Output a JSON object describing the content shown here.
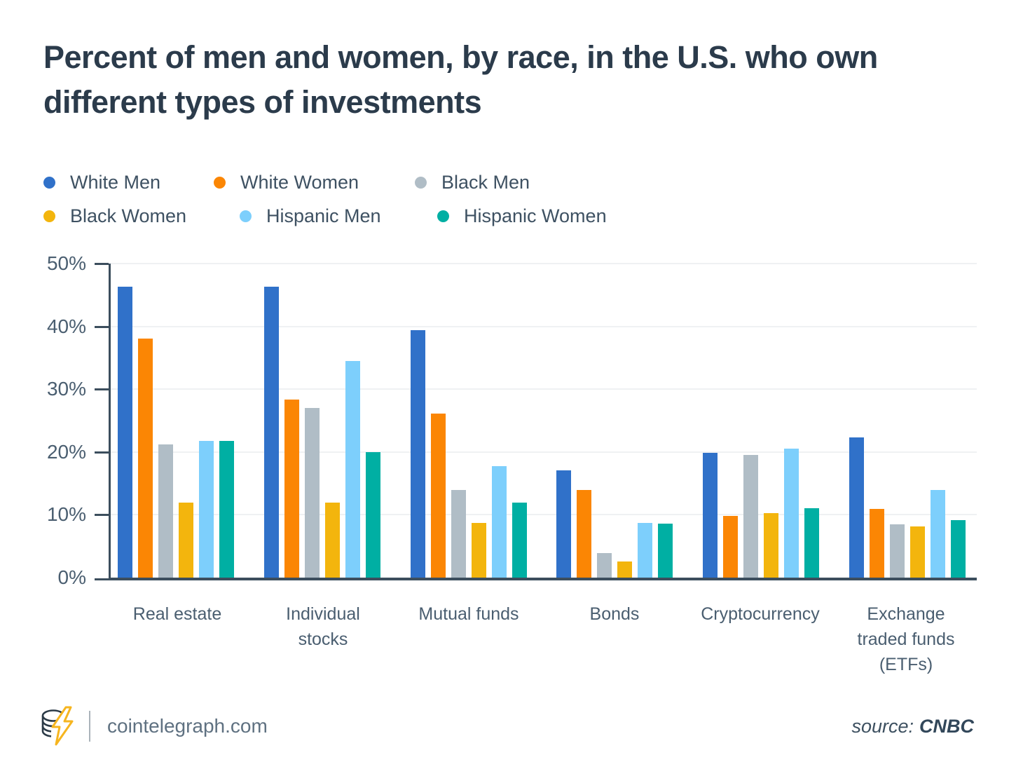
{
  "chart_data": {
    "type": "bar",
    "title": "Percent of men and women, by race, in the U.S. who own different types of investments",
    "categories": [
      "Real estate",
      "Individual stocks",
      "Mutual funds",
      "Bonds",
      "Cryptocurrency",
      "Exchange traded funds (ETFs)"
    ],
    "series": [
      {
        "name": "White Men",
        "color": "#3071c9",
        "values": [
          46.3,
          46.3,
          39.4,
          17.1,
          19.9,
          22.3
        ]
      },
      {
        "name": "White Women",
        "color": "#fb8604",
        "values": [
          38.1,
          28.4,
          26.1,
          14.0,
          9.8,
          10.9
        ]
      },
      {
        "name": "Black Men",
        "color": "#b0bdc6",
        "values": [
          21.2,
          27.0,
          14.0,
          3.9,
          19.5,
          8.5
        ]
      },
      {
        "name": "Black Women",
        "color": "#f3b50d",
        "values": [
          11.9,
          11.9,
          8.7,
          2.6,
          10.3,
          8.1
        ]
      },
      {
        "name": "Hispanic Men",
        "color": "#7dcffc",
        "values": [
          21.8,
          34.5,
          17.7,
          8.7,
          20.5,
          14.0
        ]
      },
      {
        "name": "Hispanic Women",
        "color": "#00afa3",
        "values": [
          21.8,
          20.0,
          11.9,
          8.6,
          11.0,
          9.2
        ]
      }
    ],
    "y_ticks": [
      "0%",
      "10%",
      "20%",
      "30%",
      "40%",
      "50%"
    ],
    "ylim": [
      0,
      50
    ],
    "grid": true,
    "legend_position": "top-left",
    "xlabel": "",
    "ylabel": ""
  },
  "footer": {
    "site": "cointelegraph.com",
    "source_label": "source:",
    "source_value": "CNBC"
  }
}
